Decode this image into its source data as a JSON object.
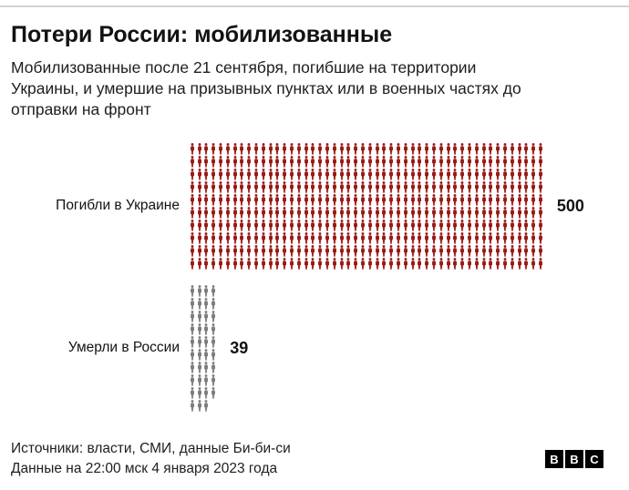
{
  "header": {
    "title": "Потери России: мобилизованные",
    "subtitle": "Мобилизованные после 21 сентября, погибшие на территории Украины, и умершие на призывных пунктах или в военных частях до отправки на фронт"
  },
  "chart_data": {
    "type": "pictogram",
    "icon": "person-icon",
    "unit_per_icon": 1,
    "rows_per_column": 10,
    "series": [
      {
        "label": "Погибли в Украине",
        "value": 500,
        "color": "#9a1a17"
      },
      {
        "label": "Умерли в России",
        "value": 39,
        "color": "#7d7d7d"
      }
    ]
  },
  "footer": {
    "source": "Источники: власти, СМИ, данные Би-би-си",
    "note": "Данные на 22:00 мск 4 января 2023 года",
    "logo_letters": [
      "B",
      "B",
      "C"
    ]
  }
}
